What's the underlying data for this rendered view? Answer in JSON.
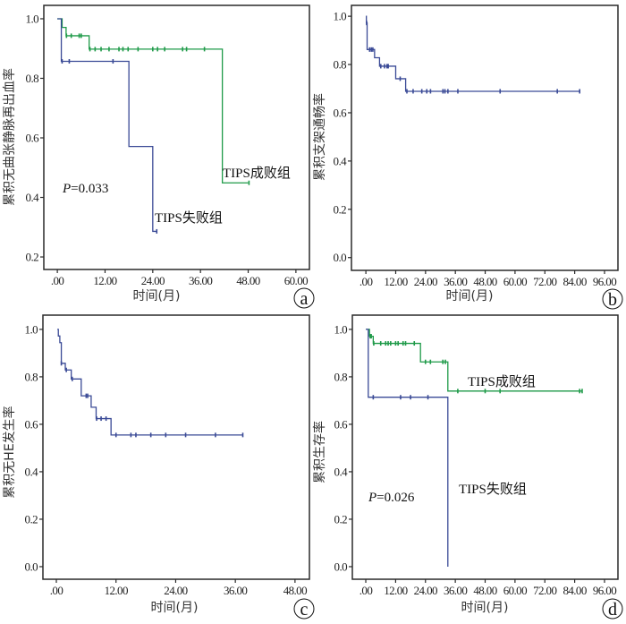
{
  "colors": {
    "failure": "#3a4a96",
    "success": "#1e9a48",
    "frame": "#2a2a2a"
  },
  "chart_data": [
    {
      "panel": "a",
      "type": "line",
      "xlabel": "时间(月)",
      "ylabel": "累积无曲张静脉再出血率",
      "xticks": [
        ".00",
        "12.00",
        "24.00",
        "36.00",
        "48.00",
        "60.00"
      ],
      "xtick_values": [
        0,
        12,
        24,
        36,
        48,
        60
      ],
      "yticks": [
        "0.2",
        "0.4",
        "0.6",
        "0.8",
        "1.0"
      ],
      "ytick_values": [
        0.2,
        0.4,
        0.6,
        0.8,
        1.0
      ],
      "xlim": [
        -3.4,
        63.4
      ],
      "ylim": [
        0.158,
        1.045
      ],
      "annotation": "P=0.033",
      "annotation_p": "P",
      "annotation_rest": "=0.033",
      "series": [
        {
          "name": "TIPS成败组",
          "color_key": "success",
          "steps": [
            [
              0,
              1.0
            ],
            [
              1.2,
              0.971
            ],
            [
              2.2,
              0.943
            ],
            [
              8,
              0.898
            ],
            [
              41.5,
              0.449
            ],
            [
              48,
              0.449
            ]
          ],
          "censored": [
            [
              2.3,
              0.943
            ],
            [
              3.5,
              0.943
            ],
            [
              5.5,
              0.943
            ],
            [
              6,
              0.943
            ],
            [
              8.2,
              0.898
            ],
            [
              9.5,
              0.898
            ],
            [
              11,
              0.898
            ],
            [
              13,
              0.898
            ],
            [
              15.5,
              0.898
            ],
            [
              16.5,
              0.898
            ],
            [
              17.8,
              0.898
            ],
            [
              20.3,
              0.898
            ],
            [
              24,
              0.898
            ],
            [
              25.2,
              0.898
            ],
            [
              27,
              0.898
            ],
            [
              31.5,
              0.898
            ],
            [
              32.5,
              0.898
            ],
            [
              37,
              0.898
            ],
            [
              48.2,
              0.449
            ]
          ]
        },
        {
          "name": "TIPS失败组",
          "color_key": "failure",
          "steps": [
            [
              0,
              1.0
            ],
            [
              1,
              0.857
            ],
            [
              18,
              0.571
            ],
            [
              24,
              0.286
            ],
            [
              25,
              0.286
            ]
          ],
          "censored": [
            [
              1.2,
              0.857
            ],
            [
              3,
              0.857
            ],
            [
              14,
              0.857
            ],
            [
              25,
              0.286
            ]
          ]
        }
      ],
      "labels": [
        "TIPS成败组",
        "TIPS失败组"
      ]
    },
    {
      "panel": "b",
      "type": "line",
      "xlabel": "时间(月)",
      "ylabel": "累积支架通畅率",
      "xticks": [
        ".00",
        "12.00",
        "24.00",
        "36.00",
        "48.00",
        "60.00",
        "72.00",
        "84.00",
        "96.00"
      ],
      "xtick_values": [
        0,
        12,
        24,
        36,
        48,
        60,
        72,
        84,
        96
      ],
      "yticks": [
        "0.0",
        "0.2",
        "0.4",
        "0.6",
        "0.8",
        "1.0"
      ],
      "ytick_values": [
        0,
        0.2,
        0.4,
        0.6,
        0.8,
        1.0
      ],
      "xlim": [
        -5.8,
        101.4
      ],
      "ylim": [
        -0.053,
        1.045
      ],
      "series": [
        {
          "name": "",
          "color_key": "failure",
          "steps": [
            [
              0,
              1.0
            ],
            [
              0.2,
              0.972
            ],
            [
              0.5,
              0.862
            ],
            [
              3.5,
              0.828
            ],
            [
              5.5,
              0.793
            ],
            [
              12,
              0.741
            ],
            [
              16,
              0.689
            ],
            [
              86,
              0.689
            ]
          ],
          "censored": [
            [
              0.3,
              0.972
            ],
            [
              1.5,
              0.862
            ],
            [
              2.2,
              0.862
            ],
            [
              2.8,
              0.862
            ],
            [
              6,
              0.793
            ],
            [
              7.5,
              0.793
            ],
            [
              8.5,
              0.793
            ],
            [
              9,
              0.793
            ],
            [
              13.8,
              0.741
            ],
            [
              16.5,
              0.689
            ],
            [
              19,
              0.689
            ],
            [
              22.5,
              0.689
            ],
            [
              24.5,
              0.689
            ],
            [
              26,
              0.689
            ],
            [
              31,
              0.689
            ],
            [
              31.8,
              0.689
            ],
            [
              33,
              0.689
            ],
            [
              37,
              0.689
            ],
            [
              54,
              0.689
            ],
            [
              77,
              0.689
            ],
            [
              86,
              0.689
            ]
          ]
        }
      ]
    },
    {
      "panel": "c",
      "type": "line",
      "xlabel": "时间(月)",
      "ylabel": "累积无HE发生率",
      "xticks": [
        ".00",
        "12.00",
        "24.00",
        "36.00",
        "48.00"
      ],
      "xtick_values": [
        0,
        12,
        24,
        36,
        48
      ],
      "yticks": [
        "0.0",
        "0.2",
        "0.4",
        "0.6",
        "0.8",
        "1.0"
      ],
      "ytick_values": [
        0,
        0.2,
        0.4,
        0.6,
        0.8,
        1.0
      ],
      "xlim": [
        -2.7,
        50.9
      ],
      "ylim": [
        -0.053,
        1.06
      ],
      "series": [
        {
          "name": "",
          "color_key": "failure",
          "steps": [
            [
              0.2,
              1.0
            ],
            [
              0.4,
              0.972
            ],
            [
              0.7,
              0.944
            ],
            [
              1,
              0.857
            ],
            [
              1.8,
              0.829
            ],
            [
              3,
              0.791
            ],
            [
              5,
              0.72
            ],
            [
              7,
              0.672
            ],
            [
              8,
              0.624
            ],
            [
              11,
              0.555
            ],
            [
              37.5,
              0.555
            ]
          ],
          "censored": [
            [
              1,
              0.857
            ],
            [
              2,
              0.829
            ],
            [
              3.2,
              0.791
            ],
            [
              6,
              0.72
            ],
            [
              6.3,
              0.72
            ],
            [
              8.1,
              0.624
            ],
            [
              9,
              0.624
            ],
            [
              10,
              0.624
            ],
            [
              12,
              0.555
            ],
            [
              15,
              0.555
            ],
            [
              16,
              0.555
            ],
            [
              19,
              0.555
            ],
            [
              22,
              0.555
            ],
            [
              26,
              0.555
            ],
            [
              32,
              0.555
            ],
            [
              37.5,
              0.555
            ]
          ]
        }
      ]
    },
    {
      "panel": "d",
      "type": "line",
      "xlabel": "时间(月)",
      "ylabel": "累积生存率",
      "xticks": [
        ".00",
        "12.00",
        "24.00",
        "36.00",
        "48.00",
        "60.00",
        "72.00",
        "84.00",
        "96.00"
      ],
      "xtick_values": [
        0,
        12,
        24,
        36,
        48,
        60,
        72,
        84,
        96
      ],
      "yticks": [
        "0.0",
        "0.2",
        "0.4",
        "0.6",
        "0.8",
        "1.0"
      ],
      "ytick_values": [
        0,
        0.2,
        0.4,
        0.6,
        0.8,
        1.0
      ],
      "xlim": [
        -5.4,
        101.4
      ],
      "ylim": [
        -0.053,
        1.06
      ],
      "annotation": "P=0.026",
      "annotation_p": "P",
      "annotation_rest": "=0.026",
      "series": [
        {
          "name": "TIPS成败组",
          "color_key": "success",
          "steps": [
            [
              0,
              1.0
            ],
            [
              1.5,
              0.971
            ],
            [
              3,
              0.941
            ],
            [
              22,
              0.863
            ],
            [
              33,
              0.74
            ],
            [
              87,
              0.74
            ]
          ],
          "censored": [
            [
              1.8,
              0.971
            ],
            [
              2.2,
              0.971
            ],
            [
              3.2,
              0.941
            ],
            [
              6,
              0.941
            ],
            [
              8,
              0.941
            ],
            [
              9,
              0.941
            ],
            [
              10,
              0.941
            ],
            [
              12,
              0.941
            ],
            [
              13,
              0.941
            ],
            [
              15,
              0.941
            ],
            [
              16,
              0.941
            ],
            [
              19.5,
              0.941
            ],
            [
              24,
              0.863
            ],
            [
              26,
              0.863
            ],
            [
              31,
              0.863
            ],
            [
              32,
              0.863
            ],
            [
              37,
              0.74
            ],
            [
              48,
              0.74
            ],
            [
              54,
              0.74
            ],
            [
              86,
              0.74
            ],
            [
              87,
              0.74
            ]
          ]
        },
        {
          "name": "TIPS失败组",
          "color_key": "failure",
          "steps": [
            [
              0,
              1.0
            ],
            [
              1,
              0.714
            ],
            [
              33,
              0.0
            ]
          ],
          "censored": [
            [
              3,
              0.714
            ],
            [
              14,
              0.714
            ],
            [
              18,
              0.714
            ],
            [
              25,
              0.714
            ]
          ]
        }
      ],
      "labels": [
        "TIPS成败组",
        "TIPS失败组"
      ]
    }
  ]
}
